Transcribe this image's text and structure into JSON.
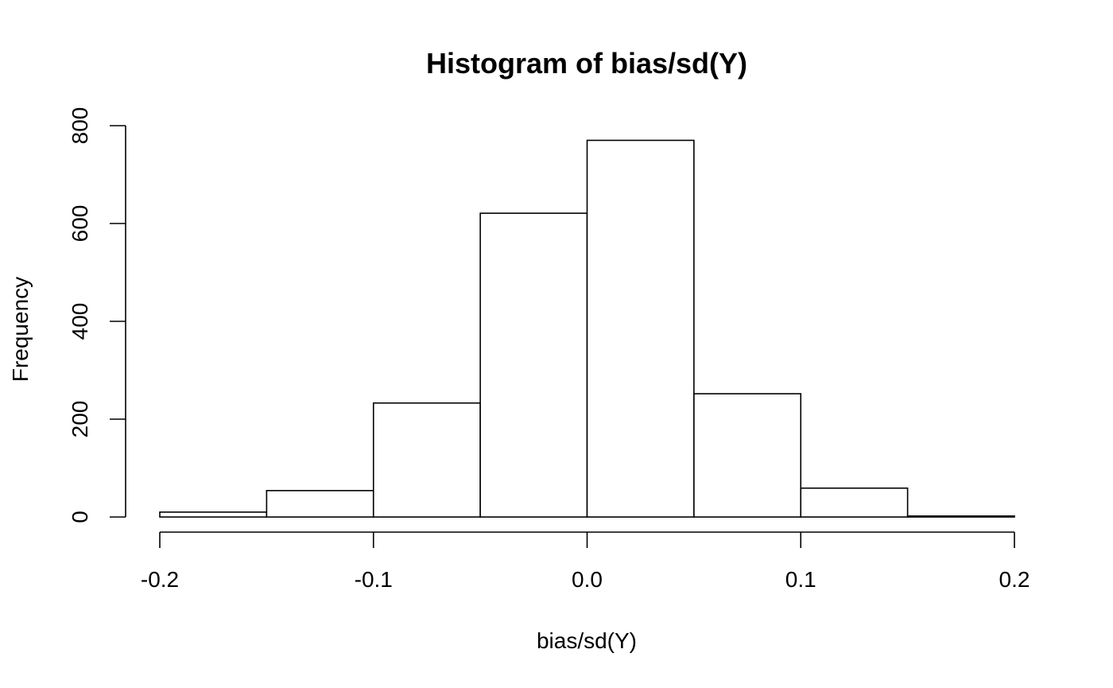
{
  "chart_data": {
    "type": "bar",
    "subtype": "histogram",
    "title": "Histogram of bias/sd(Y)",
    "xlabel": "bias/sd(Y)",
    "ylabel": "Frequency",
    "bins": [
      {
        "start": -0.2,
        "end": -0.15,
        "value": 10
      },
      {
        "start": -0.15,
        "end": -0.1,
        "value": 54
      },
      {
        "start": -0.1,
        "end": -0.05,
        "value": 233
      },
      {
        "start": -0.05,
        "end": 0.0,
        "value": 621
      },
      {
        "start": 0.0,
        "end": 0.05,
        "value": 770
      },
      {
        "start": 0.05,
        "end": 0.1,
        "value": 252
      },
      {
        "start": 0.1,
        "end": 0.15,
        "value": 59
      },
      {
        "start": 0.15,
        "end": 0.2,
        "value": 2
      }
    ],
    "xlim": [
      -0.2,
      0.2
    ],
    "ylim": [
      0,
      800
    ],
    "x_ticks": [
      {
        "value": -0.2,
        "label": "-0.2"
      },
      {
        "value": -0.1,
        "label": "-0.1"
      },
      {
        "value": 0.0,
        "label": "0.0"
      },
      {
        "value": 0.1,
        "label": "0.1"
      },
      {
        "value": 0.2,
        "label": "0.2"
      }
    ],
    "y_ticks": [
      {
        "value": 0,
        "label": "0"
      },
      {
        "value": 200,
        "label": "200"
      },
      {
        "value": 400,
        "label": "400"
      },
      {
        "value": 600,
        "label": "600"
      },
      {
        "value": 800,
        "label": "800"
      }
    ],
    "grid": false,
    "legend": "none",
    "bar_fill": "#ffffff",
    "bar_stroke": "#000000"
  }
}
